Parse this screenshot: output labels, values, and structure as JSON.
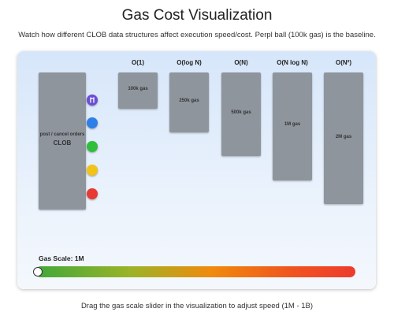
{
  "header": {
    "title": "Gas Cost Visualization",
    "subtitle": "Watch how different CLOB data structures affect execution speed/cost. Perpl ball (100k gas) is the baseline."
  },
  "clob": {
    "caption": "post / cancel orders",
    "name": "CLOB"
  },
  "columns": [
    {
      "label": "O(1)",
      "gas": "100k gas"
    },
    {
      "label": "O(log N)",
      "gas": "250k gas"
    },
    {
      "label": "O(N)",
      "gas": "500k gas"
    },
    {
      "label": "O(N log N)",
      "gas": "1M gas"
    },
    {
      "label": "O(N²)",
      "gas": "2M gas"
    }
  ],
  "slider": {
    "label": "Gas Scale: 1M"
  },
  "footer": "Drag the gas scale slider in the visualization to adjust speed (1M - 1B)"
}
